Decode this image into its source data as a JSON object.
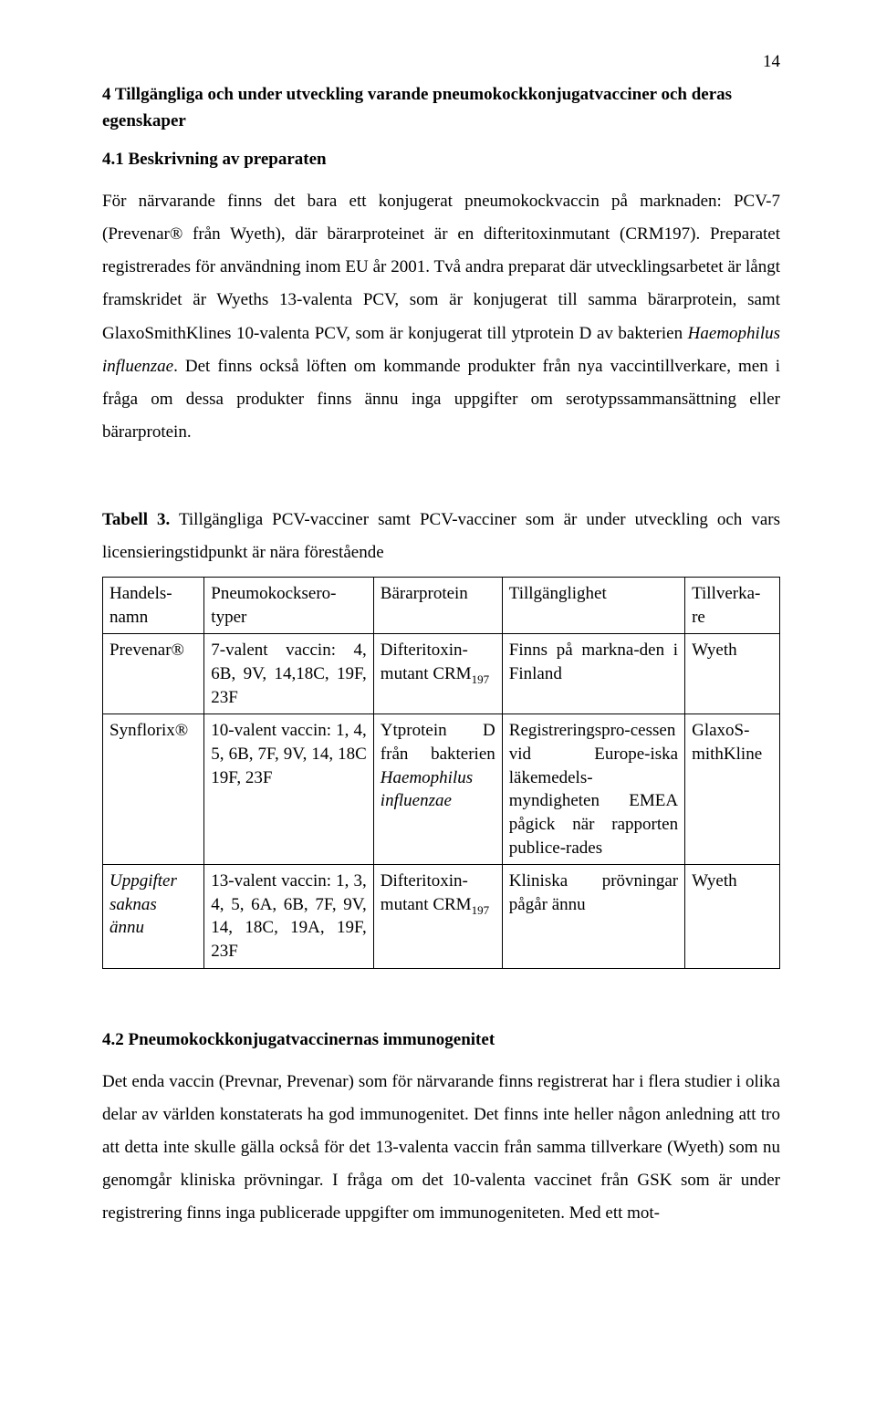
{
  "page_number": "14",
  "heading_main": "4   Tillgängliga och under utveckling varande pneumokockkonjugatvacciner och deras egenskaper",
  "heading_sub1": "4.1 Beskrivning av preparaten",
  "para1_a": "För närvarande finns det bara ett konjugerat pneumokockvaccin på marknaden: PCV-7 (Prevenar® från Wyeth), där bärarproteinet är en difteritoxinmutant (CRM197). Preparatet registrerades för användning inom EU år 2001. Två andra preparat där utvecklingsarbetet är långt framskridet är Wyeths 13-valenta PCV, som är konjugerat till samma bärarprotein, samt GlaxoSmithKlines 10-valenta PCV, som är konjugerat till ytprotein D av bakterien ",
  "para1_italic": "Haemophilus influenzae",
  "para1_b": ". Det finns också löften om kommande produkter från nya vaccintillverkare, men i fråga om dessa produkter finns ännu inga uppgifter om serotypssammansättning eller bärarprotein.",
  "table_caption_bold": "Tabell 3.",
  "table_caption_rest": " Tillgängliga PCV-vacciner samt PCV-vacciner som är under utveckling och vars licensieringstidpunkt är nära förestående",
  "table": {
    "headers": {
      "c1": "Handels-namn",
      "c2": "Pneumokocksero-typer",
      "c3": "Bärarprotein",
      "c4": "Tillgänglighet",
      "c5": "Tillverka-re"
    },
    "row1": {
      "c1": "Prevenar®",
      "c2": "7-valent vaccin: 4, 6B, 9V, 14,18C, 19F, 23F",
      "c3a": "Difteritoxin-mutant CRM",
      "c3sub": "197",
      "c4": "Finns på markna-den i Finland",
      "c5": "Wyeth"
    },
    "row2": {
      "c1": "Synflorix®",
      "c2": " 10-valent vaccin: 1, 4, 5, 6B, 7F, 9V, 14, 18C 19F, 23F",
      "c3a": "Ytprotein D från bakterien ",
      "c3italic": "Haemophilus influenzae",
      "c4": "Registreringspro-cessen vid Europe-iska läkemedels-myndigheten EMEA pågick när rapporten publice-rades",
      "c5": "GlaxoS-mithKline"
    },
    "row3": {
      "c1italic": "Uppgifter saknas\nännu",
      "c2": "13-valent vaccin: 1, 3, 4, 5, 6A, 6B, 7F, 9V, 14, 18C, 19A, 19F, 23F",
      "c3a": "Difteritoxin-mutant CRM",
      "c3sub": "197",
      "c4": "Kliniska prövningar pågår ännu",
      "c5": "Wyeth"
    }
  },
  "heading_sub2": "4.2 Pneumokockkonjugatvaccinernas immunogenitet",
  "para2": "Det enda vaccin (Prevnar, Prevenar) som för närvarande finns registrerat har i flera studier i olika delar av världen konstaterats ha god immunogenitet. Det finns inte heller någon anledning att tro att detta inte skulle gälla också för det 13-valenta vaccin från samma tillverkare (Wyeth) som nu genomgår kliniska prövningar. I fråga om det 10-valenta vaccinet från GSK som är under registrering finns inga publicerade uppgifter om immunogeniteten. Med ett mot-"
}
